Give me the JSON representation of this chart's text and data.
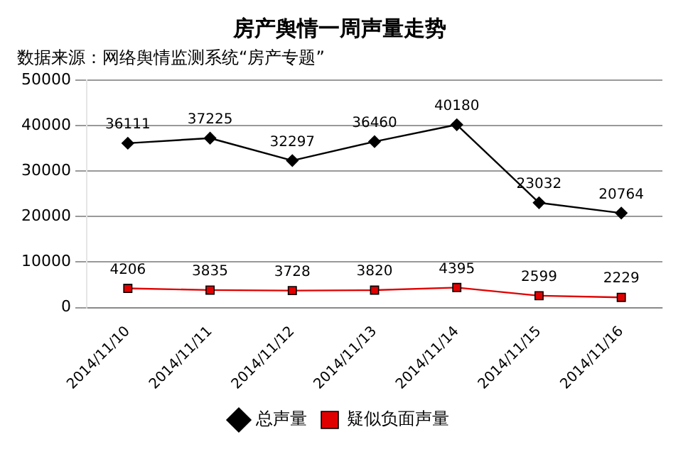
{
  "chart_data": {
    "type": "line",
    "title": "房产舆情一周声量走势",
    "subtitle": "数据来源：网络舆情监测系统“房产专题”",
    "categories": [
      "2014/11/10",
      "2014/11/11",
      "2014/11/12",
      "2014/11/13",
      "2014/11/14",
      "2014/11/15",
      "2014/11/16"
    ],
    "series": [
      {
        "name": "总声量",
        "color": "#000000",
        "marker": "diamond",
        "values": [
          36111,
          37225,
          32297,
          36460,
          40180,
          23032,
          20764
        ]
      },
      {
        "name": "疑似负面声量",
        "color": "#e00000",
        "marker": "square",
        "values": [
          4206,
          3835,
          3728,
          3820,
          4395,
          2599,
          2229
        ]
      }
    ],
    "ylim": [
      0,
      50000
    ],
    "yticks": [
      0,
      10000,
      20000,
      30000,
      40000,
      50000
    ],
    "grid": "y",
    "legend": "bottom",
    "data_labels": true,
    "line_style": "solid"
  }
}
